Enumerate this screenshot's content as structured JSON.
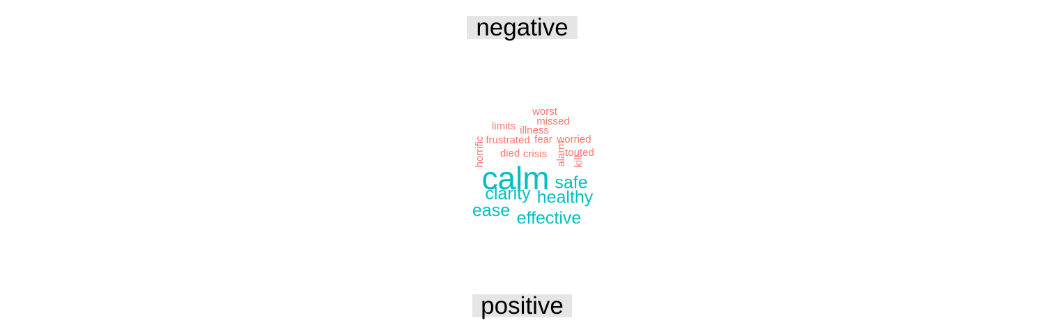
{
  "chart_data": {
    "type": "wordcloud",
    "groups": [
      {
        "name": "negative",
        "color": "#F8766D",
        "words": [
          {
            "text": "worst"
          },
          {
            "text": "missed"
          },
          {
            "text": "limits"
          },
          {
            "text": "illness"
          },
          {
            "text": "frustrated"
          },
          {
            "text": "fear"
          },
          {
            "text": "worried"
          },
          {
            "text": "horrific"
          },
          {
            "text": "died"
          },
          {
            "text": "crisis"
          },
          {
            "text": "alarm"
          },
          {
            "text": "touted"
          },
          {
            "text": "kill"
          }
        ]
      },
      {
        "name": "positive",
        "color": "#00BFC4",
        "words": [
          {
            "text": "calm"
          },
          {
            "text": "safe"
          },
          {
            "text": "clarity"
          },
          {
            "text": "healthy"
          },
          {
            "text": "ease"
          },
          {
            "text": "effective"
          }
        ]
      }
    ]
  }
}
